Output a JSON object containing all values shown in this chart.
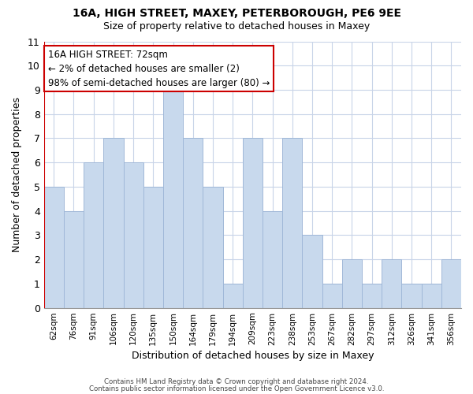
{
  "title1": "16A, HIGH STREET, MAXEY, PETERBOROUGH, PE6 9EE",
  "title2": "Size of property relative to detached houses in Maxey",
  "xlabel": "Distribution of detached houses by size in Maxey",
  "ylabel": "Number of detached properties",
  "footer1": "Contains HM Land Registry data © Crown copyright and database right 2024.",
  "footer2": "Contains public sector information licensed under the Open Government Licence v3.0.",
  "bar_labels": [
    "62sqm",
    "76sqm",
    "91sqm",
    "106sqm",
    "120sqm",
    "135sqm",
    "150sqm",
    "164sqm",
    "179sqm",
    "194sqm",
    "209sqm",
    "223sqm",
    "238sqm",
    "253sqm",
    "267sqm",
    "282sqm",
    "297sqm",
    "312sqm",
    "326sqm",
    "341sqm",
    "356sqm"
  ],
  "bar_values": [
    5,
    4,
    6,
    7,
    6,
    5,
    9,
    7,
    5,
    1,
    7,
    4,
    7,
    3,
    1,
    2,
    1,
    2,
    1,
    1,
    2
  ],
  "bar_color": "#c8d9ed",
  "bar_edge_color": "#a0b8d8",
  "highlight_color": "#cc0000",
  "annotation_title": "16A HIGH STREET: 72sqm",
  "annotation_line1": "← 2% of detached houses are smaller (2)",
  "annotation_line2": "98% of semi-detached houses are larger (80) →",
  "annotation_box_color": "#ffffff",
  "annotation_box_edge_color": "#cc0000",
  "ylim": [
    0,
    11
  ],
  "yticks": [
    0,
    1,
    2,
    3,
    4,
    5,
    6,
    7,
    8,
    9,
    10,
    11
  ],
  "background_color": "#ffffff",
  "grid_color": "#c8d4e8"
}
